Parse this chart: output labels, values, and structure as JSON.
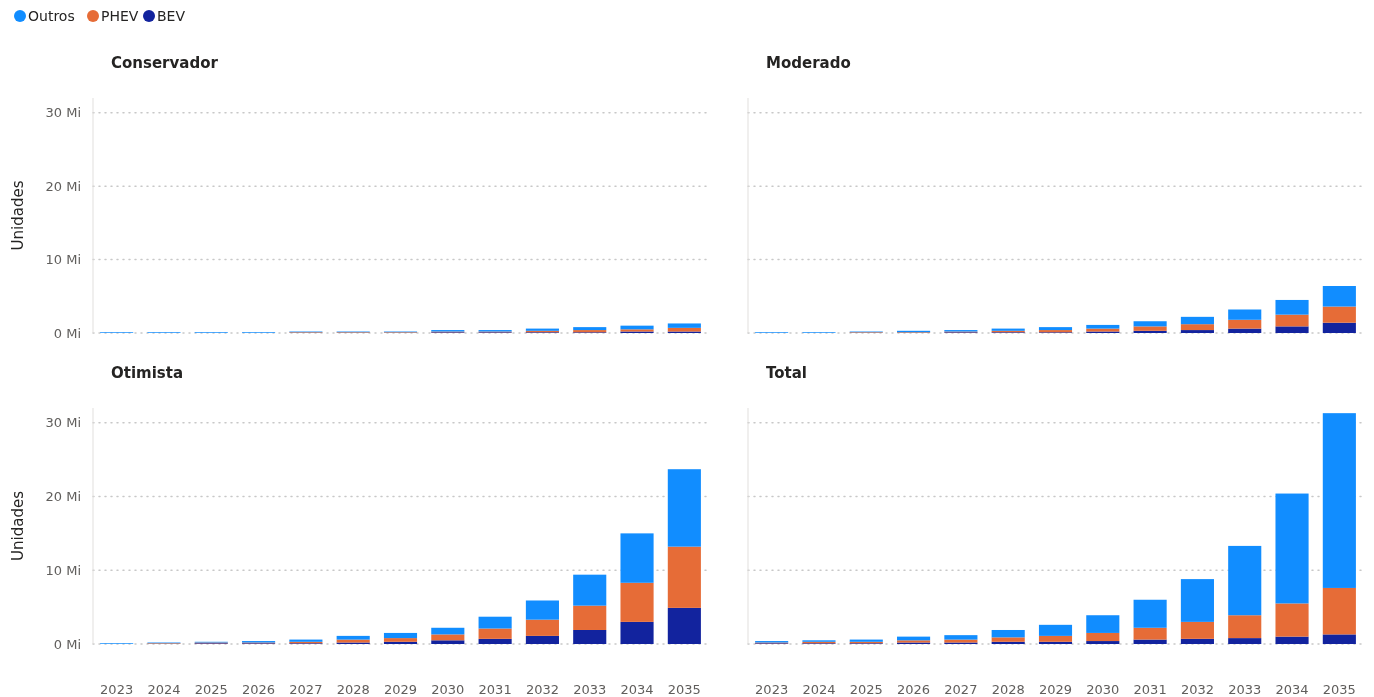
{
  "chart_data": [
    {
      "type": "bar",
      "stacked": true,
      "title": "Conservador",
      "ylabel": "Unidades",
      "categories": [
        "2023",
        "2024",
        "2025",
        "2026",
        "2027",
        "2028",
        "2029",
        "2030",
        "2031",
        "2032",
        "2033",
        "2034",
        "2035"
      ],
      "ylim": [
        0,
        32
      ],
      "yticks": [
        {
          "value": 0,
          "label": "0 Mi"
        },
        {
          "value": 10,
          "label": "10 Mi"
        },
        {
          "value": 20,
          "label": "20 Mi"
        },
        {
          "value": 30,
          "label": "30 Mi"
        }
      ],
      "grid": "y",
      "legend": "top left",
      "tick_labels": "y",
      "series": [
        {
          "name": "BEV",
          "color": "#12239e",
          "values": [
            0,
            0,
            0,
            0,
            0,
            0,
            0,
            0.1,
            0.1,
            0.1,
            0.1,
            0.2,
            0.2
          ]
        },
        {
          "name": "PHEV",
          "color": "#e66c37",
          "values": [
            0,
            0,
            0,
            0,
            0.1,
            0.1,
            0.1,
            0.1,
            0.1,
            0.2,
            0.3,
            0.3,
            0.5
          ]
        },
        {
          "name": "Outros",
          "color": "#118dff",
          "values": [
            0.1,
            0.1,
            0.1,
            0.1,
            0.1,
            0.1,
            0.1,
            0.2,
            0.2,
            0.3,
            0.4,
            0.5,
            0.6
          ]
        }
      ]
    },
    {
      "type": "bar",
      "stacked": true,
      "title": "Moderado",
      "categories": [
        "2023",
        "2024",
        "2025",
        "2026",
        "2027",
        "2028",
        "2029",
        "2030",
        "2031",
        "2032",
        "2033",
        "2034",
        "2035"
      ],
      "ylim": [
        0,
        32
      ],
      "yticks": [
        0,
        10,
        20,
        30
      ],
      "grid": "y",
      "tick_labels": false,
      "series": [
        {
          "color": "#12239e",
          "values": [
            0,
            0,
            0,
            0,
            0.1,
            0.1,
            0.1,
            0.2,
            0.3,
            0.4,
            0.6,
            0.9,
            1.4
          ]
        },
        {
          "color": "#e66c37",
          "values": [
            0,
            0,
            0.1,
            0.1,
            0.1,
            0.2,
            0.3,
            0.4,
            0.6,
            0.8,
            1.2,
            1.6,
            2.2
          ]
        },
        {
          "color": "#118dff",
          "values": [
            0.1,
            0.1,
            0.1,
            0.2,
            0.2,
            0.3,
            0.4,
            0.5,
            0.7,
            1.0,
            1.4,
            2.0,
            2.8
          ]
        }
      ]
    },
    {
      "type": "bar",
      "stacked": true,
      "title": "Otimista",
      "ylabel": "Unidades",
      "categories": [
        "2023",
        "2024",
        "2025",
        "2026",
        "2027",
        "2028",
        "2029",
        "2030",
        "2031",
        "2032",
        "2033",
        "2034",
        "2035"
      ],
      "ylim": [
        0,
        32
      ],
      "yticks": [
        {
          "value": 0,
          "label": "0 Mi"
        },
        {
          "value": 10,
          "label": "10 Mi"
        },
        {
          "value": 20,
          "label": "20 Mi"
        },
        {
          "value": 30,
          "label": "30 Mi"
        }
      ],
      "grid": "y",
      "series": [
        {
          "color": "#12239e",
          "values": [
            0,
            0,
            0.1,
            0.1,
            0.1,
            0.2,
            0.3,
            0.5,
            0.7,
            1.1,
            1.9,
            3.0,
            4.9
          ]
        },
        {
          "color": "#e66c37",
          "values": [
            0,
            0.1,
            0.1,
            0.1,
            0.2,
            0.4,
            0.5,
            0.8,
            1.4,
            2.2,
            3.3,
            5.3,
            8.3
          ]
        },
        {
          "color": "#118dff",
          "values": [
            0.1,
            0.1,
            0.1,
            0.2,
            0.3,
            0.5,
            0.7,
            0.9,
            1.6,
            2.6,
            4.2,
            6.7,
            10.5
          ]
        }
      ]
    },
    {
      "type": "bar",
      "stacked": true,
      "title": "Total",
      "categories": [
        "2023",
        "2024",
        "2025",
        "2026",
        "2027",
        "2028",
        "2029",
        "2030",
        "2031",
        "2032",
        "2033",
        "2034",
        "2035"
      ],
      "ylim": [
        0,
        32
      ],
      "yticks": [
        0,
        10,
        20,
        30
      ],
      "grid": "y",
      "tick_labels": "x",
      "series": [
        {
          "color": "#12239e",
          "values": [
            0.1,
            0.1,
            0.1,
            0.2,
            0.2,
            0.3,
            0.3,
            0.4,
            0.6,
            0.7,
            0.8,
            1.0,
            1.3
          ]
        },
        {
          "color": "#e66c37",
          "values": [
            0.1,
            0.2,
            0.2,
            0.3,
            0.4,
            0.6,
            0.8,
            1.1,
            1.6,
            2.3,
            3.1,
            4.5,
            6.3
          ]
        },
        {
          "color": "#118dff",
          "values": [
            0.2,
            0.2,
            0.3,
            0.5,
            0.6,
            1.0,
            1.5,
            2.4,
            3.8,
            5.8,
            9.4,
            14.9,
            23.7
          ]
        }
      ]
    }
  ]
}
